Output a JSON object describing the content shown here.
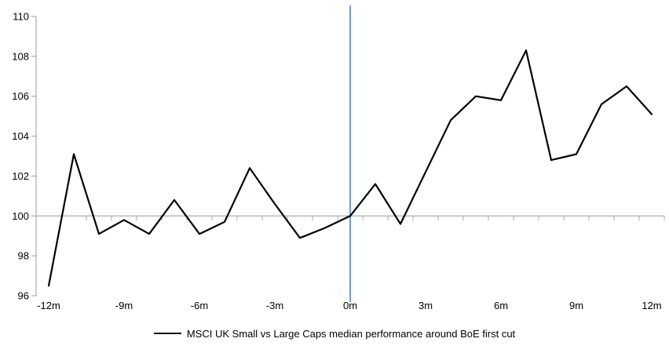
{
  "chart_data": {
    "type": "line",
    "title": "",
    "legend": "MSCI UK Small vs Large Caps median performance around BoE first cut",
    "legend_position": "bottom-center",
    "grid": false,
    "x": [
      -12,
      -11,
      -10,
      -9,
      -8,
      -7,
      -6,
      -5,
      -4,
      -3,
      -2,
      -1,
      0,
      1,
      2,
      3,
      4,
      5,
      6,
      7,
      8,
      9,
      10,
      11,
      12
    ],
    "series": [
      {
        "name": "MSCI UK Small vs Large Caps median performance around BoE first cut",
        "color": "#000000",
        "values": [
          96.5,
          103.1,
          99.1,
          99.8,
          99.1,
          100.8,
          99.1,
          99.7,
          102.4,
          100.6,
          98.9,
          99.4,
          100.0,
          101.6,
          99.6,
          102.2,
          104.8,
          106.0,
          105.8,
          108.3,
          102.8,
          103.1,
          105.6,
          106.5,
          105.1
        ]
      }
    ],
    "x_tick_values": [
      -12,
      -9,
      -6,
      -3,
      0,
      3,
      6,
      9,
      12
    ],
    "x_tick_labels": [
      "-12m",
      "-9m",
      "-6m",
      "-3m",
      "0m",
      "3m",
      "6m",
      "9m",
      "12m"
    ],
    "y_ticks": [
      96,
      98,
      100,
      102,
      104,
      106,
      108,
      110
    ],
    "ylim": [
      96,
      110
    ],
    "xlabel": "",
    "ylabel": "",
    "baseline": 100,
    "event_line_x": 0,
    "colors": {
      "series": "#000000",
      "event_line": "#4E81BD",
      "axis": "#ABABAB",
      "text": "#000000",
      "background": "#ffffff"
    }
  }
}
